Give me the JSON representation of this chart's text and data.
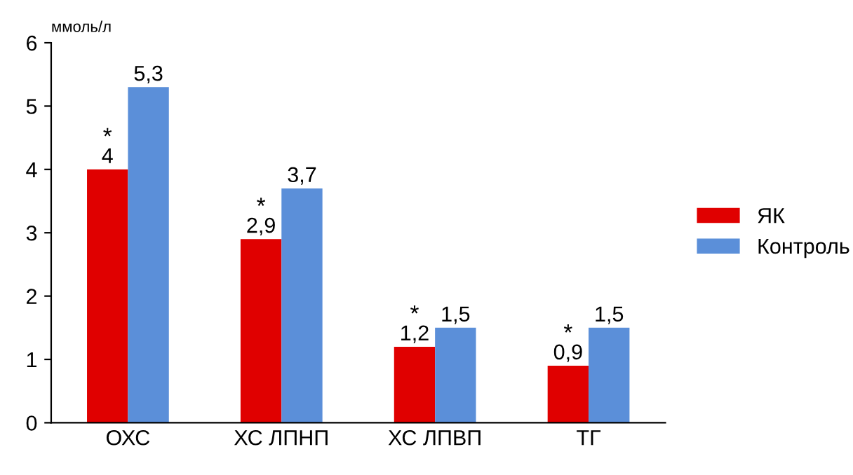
{
  "chart_data": {
    "type": "bar",
    "ylabel": "ммоль/л",
    "categories": [
      "ОХС",
      "ХС ЛПНП",
      "ХС ЛПВП",
      "ТГ"
    ],
    "series": [
      {
        "name": "ЯК",
        "color": "#e00000",
        "values": [
          4,
          2.9,
          1.2,
          0.9
        ],
        "value_labels": [
          "4",
          "2,9",
          "1,2",
          "0,9"
        ]
      },
      {
        "name": "Контроль",
        "color": "#5b8fd9",
        "values": [
          5.3,
          3.7,
          1.5,
          1.5
        ],
        "value_labels": [
          "5,3",
          "3,7",
          "1,5",
          "1,5"
        ]
      }
    ],
    "annotations": [
      {
        "text": "*",
        "x": "ОХС",
        "y": 4
      },
      {
        "text": "*",
        "x": "ХС ЛПНП",
        "y": 2.9
      },
      {
        "text": "*",
        "x": "ХС ЛПВП",
        "y": 1.2
      },
      {
        "text": "*",
        "x": "ТГ",
        "y": 0.9
      }
    ],
    "ylim": [
      0,
      6
    ],
    "yticks": [
      0,
      1,
      2,
      3,
      4,
      5,
      6
    ],
    "grid": false,
    "legend": "right"
  }
}
